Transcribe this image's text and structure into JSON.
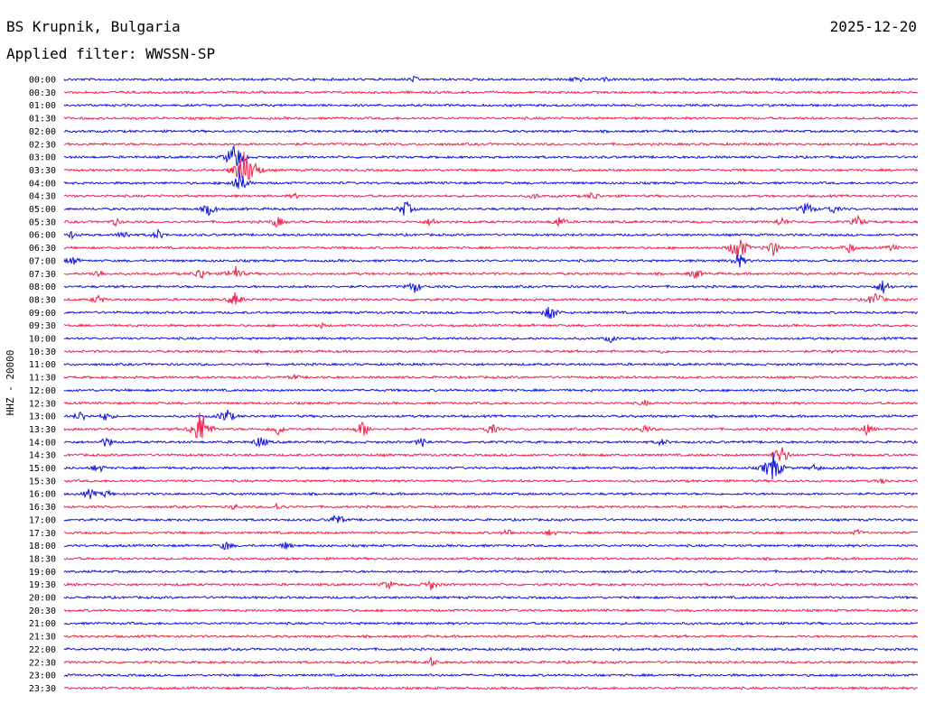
{
  "header": {
    "station": "BS Krupnik, Bulgaria",
    "date": "2025-12-20",
    "filter": "Applied filter: WWSSN-SP"
  },
  "colors": {
    "even_row": "#1010e0",
    "odd_row": "#f01e4a"
  },
  "chart_data": {
    "type": "line",
    "title": "",
    "ylabel": "HHZ - 20000",
    "xlabel": "",
    "rows": [
      {
        "time": "00:00",
        "events": [
          [
            0.41,
            4
          ],
          [
            0.6,
            5
          ],
          [
            0.635,
            3
          ]
        ]
      },
      {
        "time": "00:30",
        "events": []
      },
      {
        "time": "01:00",
        "events": []
      },
      {
        "time": "01:30",
        "events": []
      },
      {
        "time": "02:00",
        "events": []
      },
      {
        "time": "02:30",
        "events": []
      },
      {
        "time": "03:00",
        "events": [
          [
            0.2,
            20
          ]
        ]
      },
      {
        "time": "03:30",
        "events": [
          [
            0.21,
            28
          ],
          [
            0.22,
            16
          ]
        ]
      },
      {
        "time": "04:00",
        "events": [
          [
            0.205,
            14
          ]
        ]
      },
      {
        "time": "04:30",
        "events": [
          [
            0.27,
            4
          ],
          [
            0.55,
            4
          ],
          [
            0.62,
            6
          ]
        ]
      },
      {
        "time": "05:00",
        "events": [
          [
            0.17,
            8
          ],
          [
            0.4,
            10
          ],
          [
            0.87,
            9
          ],
          [
            0.9,
            6
          ]
        ]
      },
      {
        "time": "05:30",
        "events": [
          [
            0.06,
            5
          ],
          [
            0.25,
            7
          ],
          [
            0.43,
            6
          ],
          [
            0.58,
            7
          ],
          [
            0.84,
            6
          ],
          [
            0.93,
            7
          ]
        ]
      },
      {
        "time": "06:00",
        "events": [
          [
            0.01,
            5
          ],
          [
            0.07,
            6
          ],
          [
            0.11,
            6
          ]
        ]
      },
      {
        "time": "06:30",
        "events": [
          [
            0.79,
            18
          ],
          [
            0.83,
            10
          ],
          [
            0.92,
            7
          ],
          [
            0.97,
            5
          ]
        ]
      },
      {
        "time": "07:00",
        "events": [
          [
            0.01,
            6
          ],
          [
            0.79,
            10
          ]
        ]
      },
      {
        "time": "07:30",
        "events": [
          [
            0.04,
            6
          ],
          [
            0.16,
            8
          ],
          [
            0.2,
            10
          ],
          [
            0.74,
            7
          ]
        ]
      },
      {
        "time": "08:00",
        "events": [
          [
            0.41,
            8
          ],
          [
            0.96,
            9
          ]
        ]
      },
      {
        "time": "08:30",
        "events": [
          [
            0.04,
            6
          ],
          [
            0.2,
            9
          ],
          [
            0.95,
            10
          ]
        ]
      },
      {
        "time": "09:00",
        "events": [
          [
            0.57,
            10
          ]
        ]
      },
      {
        "time": "09:30",
        "events": [
          [
            0.3,
            4
          ]
        ]
      },
      {
        "time": "10:00",
        "events": [
          [
            0.64,
            5
          ]
        ]
      },
      {
        "time": "10:30",
        "events": [
          [
            0.7,
            3
          ],
          [
            0.9,
            3
          ]
        ]
      },
      {
        "time": "11:00",
        "events": []
      },
      {
        "time": "11:30",
        "events": [
          [
            0.27,
            4
          ]
        ]
      },
      {
        "time": "12:00",
        "events": []
      },
      {
        "time": "12:30",
        "events": [
          [
            0.68,
            4
          ]
        ]
      },
      {
        "time": "13:00",
        "events": [
          [
            0.02,
            7
          ],
          [
            0.05,
            6
          ],
          [
            0.19,
            10
          ]
        ]
      },
      {
        "time": "13:30",
        "events": [
          [
            0.16,
            24
          ],
          [
            0.25,
            8
          ],
          [
            0.35,
            10
          ],
          [
            0.5,
            7
          ],
          [
            0.68,
            6
          ],
          [
            0.94,
            7
          ]
        ]
      },
      {
        "time": "14:00",
        "events": [
          [
            0.05,
            7
          ],
          [
            0.23,
            8
          ],
          [
            0.42,
            6
          ],
          [
            0.7,
            5
          ]
        ]
      },
      {
        "time": "14:30",
        "events": [
          [
            0.84,
            12
          ]
        ]
      },
      {
        "time": "15:00",
        "events": [
          [
            0.04,
            6
          ],
          [
            0.83,
            20
          ],
          [
            0.88,
            5
          ]
        ]
      },
      {
        "time": "15:30",
        "events": [
          [
            0.96,
            4
          ]
        ]
      },
      {
        "time": "16:00",
        "events": [
          [
            0.03,
            7
          ],
          [
            0.05,
            5
          ]
        ]
      },
      {
        "time": "16:30",
        "events": [
          [
            0.2,
            4
          ],
          [
            0.25,
            5
          ]
        ]
      },
      {
        "time": "17:00",
        "events": [
          [
            0.32,
            8
          ]
        ]
      },
      {
        "time": "17:30",
        "events": [
          [
            0.52,
            5
          ],
          [
            0.57,
            5
          ],
          [
            0.93,
            4
          ]
        ]
      },
      {
        "time": "18:00",
        "events": [
          [
            0.19,
            6
          ],
          [
            0.26,
            5
          ]
        ]
      },
      {
        "time": "18:30",
        "events": []
      },
      {
        "time": "19:00",
        "events": []
      },
      {
        "time": "19:30",
        "events": [
          [
            0.38,
            6
          ],
          [
            0.43,
            7
          ]
        ]
      },
      {
        "time": "20:00",
        "events": []
      },
      {
        "time": "20:30",
        "events": []
      },
      {
        "time": "21:00",
        "events": []
      },
      {
        "time": "21:30",
        "events": []
      },
      {
        "time": "22:00",
        "events": []
      },
      {
        "time": "22:30",
        "events": [
          [
            0.43,
            6
          ]
        ]
      },
      {
        "time": "23:00",
        "events": []
      },
      {
        "time": "23:30",
        "events": []
      }
    ]
  }
}
